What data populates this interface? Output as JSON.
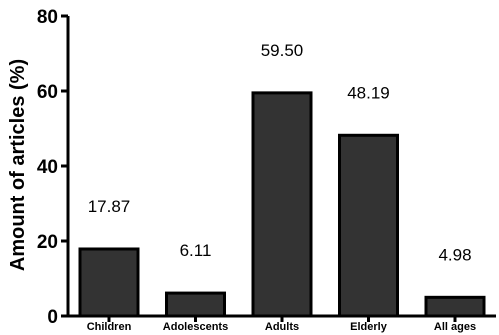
{
  "chart_data": {
    "type": "bar",
    "categories": [
      "Children",
      "Adolescents",
      "Adults",
      "Elderly",
      "All ages"
    ],
    "values": [
      17.87,
      6.11,
      59.5,
      48.19,
      4.98
    ],
    "data_labels": [
      "17.87",
      "6.11",
      "59.50",
      "48.19",
      "4.98"
    ],
    "ylabel": "Amount of articles (%)",
    "xlabel": "",
    "ylim": [
      0,
      80
    ],
    "yticks": [
      "0",
      "20",
      "40",
      "60",
      "80"
    ],
    "grid": false,
    "legend": "none",
    "bar_color": "#333333"
  }
}
